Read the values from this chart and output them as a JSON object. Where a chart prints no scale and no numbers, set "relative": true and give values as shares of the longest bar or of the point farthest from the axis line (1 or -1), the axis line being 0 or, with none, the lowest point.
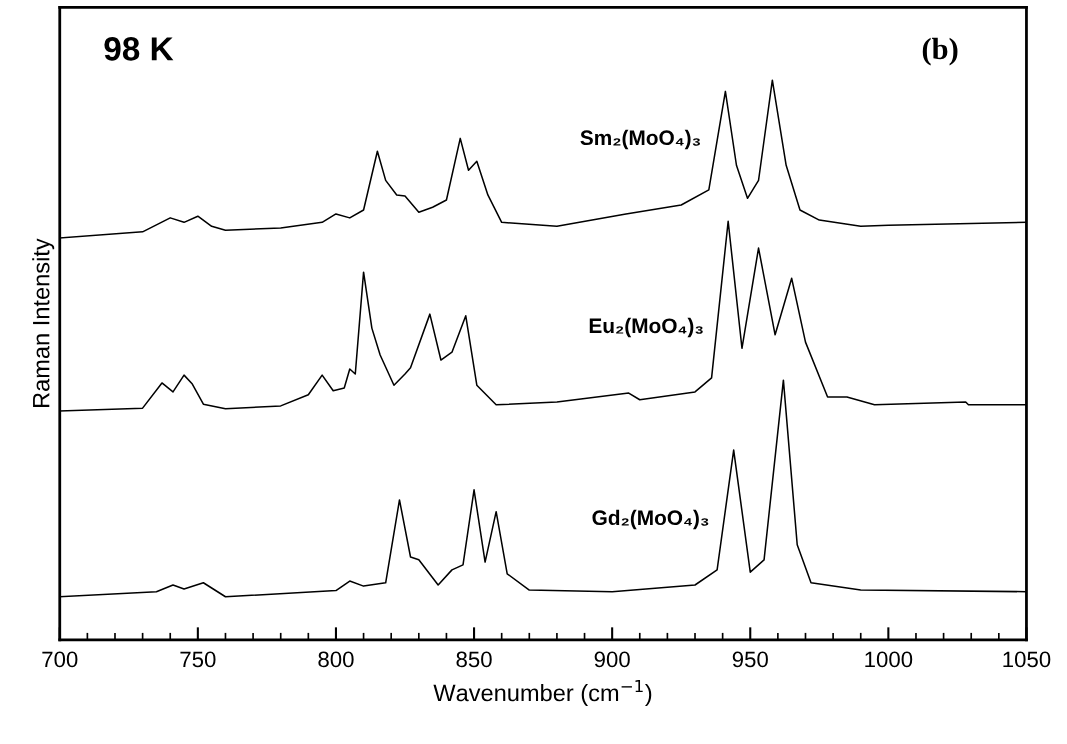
{
  "chart_data": {
    "type": "line",
    "relative": true,
    "xlabel": "Wavenumber (cm$^{−1}$)",
    "ylabel": "Raman Intensity",
    "annotations": [
      "98 K",
      "(b)"
    ],
    "xlim": [
      700,
      1050
    ],
    "xticks": [
      700,
      {
        "value": 710,
        "label": null
      },
      {
        "value": 720,
        "label": null
      },
      {
        "value": 730,
        "label": null
      },
      {
        "value": 740,
        "label": null
      },
      750,
      {
        "value": 760,
        "label": null
      },
      {
        "value": 770,
        "label": null
      },
      {
        "value": 780,
        "label": null
      },
      {
        "value": 790,
        "label": null
      },
      800,
      {
        "value": 810,
        "label": null
      },
      {
        "value": 820,
        "label": null
      },
      {
        "value": 830,
        "label": null
      },
      {
        "value": 840,
        "label": null
      },
      850,
      {
        "value": 860,
        "label": null
      },
      {
        "value": 870,
        "label": null
      },
      {
        "value": 880,
        "label": null
      },
      {
        "value": 890,
        "label": null
      },
      900,
      {
        "value": 910,
        "label": null
      },
      {
        "value": 920,
        "label": null
      },
      {
        "value": 930,
        "label": null
      },
      {
        "value": 940,
        "label": null
      },
      950,
      {
        "value": 960,
        "label": null
      },
      {
        "value": 970,
        "label": null
      },
      {
        "value": 980,
        "label": null
      },
      {
        "value": 990,
        "label": null
      },
      1000,
      {
        "value": 1010,
        "label": null
      },
      {
        "value": 1020,
        "label": null
      },
      {
        "value": 1030,
        "label": null
      },
      {
        "value": 1040,
        "label": null
      },
      1050
    ],
    "tick_labels": "x",
    "legend": false,
    "grid": false,
    "marker": "none",
    "line_style": "solid",
    "series": [
      {
        "name": "Sm₂(MoO₄)₃",
        "color": "#000000",
        "x": [
          700,
          730,
          740,
          745,
          750,
          755,
          760,
          780,
          795,
          800,
          805,
          810,
          815,
          818,
          822,
          825,
          830,
          835,
          840,
          845,
          848,
          851,
          855,
          860,
          880,
          905,
          925,
          935,
          941,
          945,
          949,
          953,
          958,
          963,
          968,
          975,
          990,
          1000,
          1050
        ],
        "values": [
          0.718,
          0.729,
          0.754,
          0.746,
          0.757,
          0.739,
          0.732,
          0.736,
          0.746,
          0.761,
          0.754,
          0.768,
          0.873,
          0.821,
          0.795,
          0.793,
          0.764,
          0.773,
          0.786,
          0.896,
          0.839,
          0.855,
          0.795,
          0.746,
          0.739,
          0.761,
          0.777,
          0.804,
          0.98,
          0.848,
          0.789,
          0.821,
          1.0,
          0.848,
          0.768,
          0.75,
          0.739,
          0.741,
          0.746
        ]
      },
      {
        "name": "Eu₂(MoO₄)₃",
        "color": "#000000",
        "x": [
          700,
          730,
          737,
          741,
          745,
          748,
          752,
          760,
          780,
          790,
          795,
          799,
          803,
          805,
          807,
          810,
          813,
          816,
          821,
          825,
          827,
          834,
          838,
          842,
          847,
          851,
          858,
          880,
          906,
          910,
          930,
          936,
          942,
          947,
          953,
          959,
          965,
          970,
          978,
          985,
          995,
          1028,
          1029,
          1050
        ],
        "values": [
          0.409,
          0.414,
          0.459,
          0.443,
          0.473,
          0.457,
          0.421,
          0.413,
          0.418,
          0.438,
          0.473,
          0.445,
          0.45,
          0.484,
          0.475,
          0.657,
          0.557,
          0.509,
          0.455,
          0.475,
          0.486,
          0.582,
          0.5,
          0.514,
          0.579,
          0.455,
          0.42,
          0.425,
          0.441,
          0.429,
          0.443,
          0.468,
          0.748,
          0.521,
          0.7,
          0.545,
          0.646,
          0.532,
          0.434,
          0.434,
          0.42,
          0.425,
          0.42,
          0.42
        ]
      },
      {
        "name": "Gd₂(MoO₄)₃",
        "color": "#000000",
        "x": [
          700,
          735,
          741,
          745,
          752,
          760,
          800,
          805,
          810,
          818,
          823,
          827,
          830,
          837,
          842,
          846,
          850,
          854,
          858,
          862,
          870,
          900,
          930,
          938,
          944,
          950,
          955,
          962,
          967,
          972,
          990,
          1050
        ],
        "values": [
          0.077,
          0.086,
          0.098,
          0.091,
          0.102,
          0.077,
          0.088,
          0.105,
          0.096,
          0.102,
          0.25,
          0.148,
          0.143,
          0.098,
          0.125,
          0.134,
          0.268,
          0.139,
          0.229,
          0.118,
          0.089,
          0.086,
          0.098,
          0.125,
          0.339,
          0.121,
          0.143,
          0.464,
          0.17,
          0.102,
          0.089,
          0.086
        ]
      }
    ]
  }
}
